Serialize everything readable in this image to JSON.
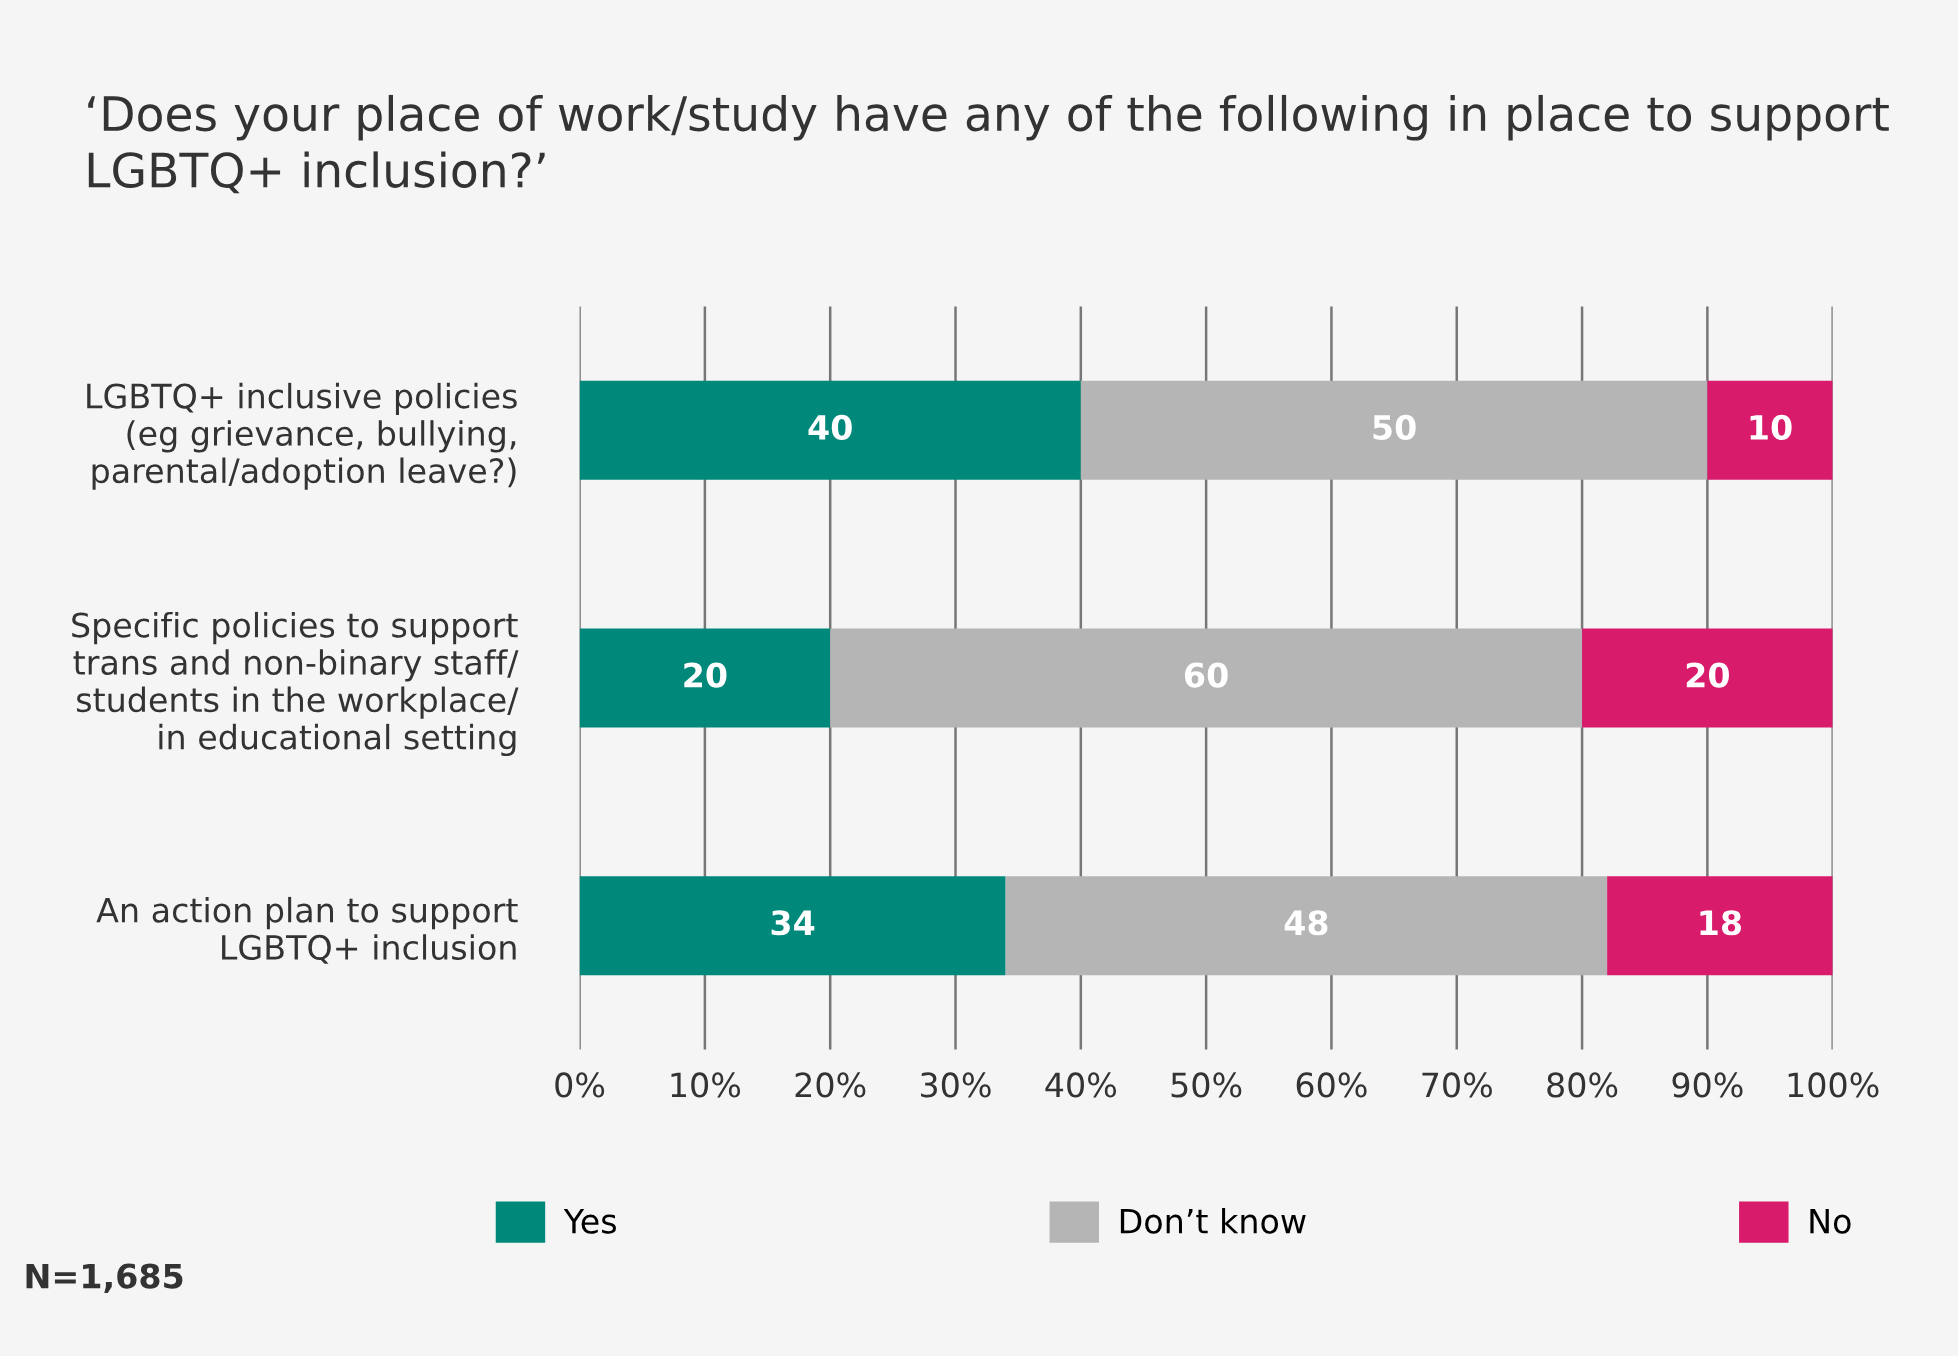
{
  "chart_data": {
    "type": "bar",
    "orientation": "horizontal",
    "stacked": true,
    "title": "‘Does your place of work/study have any of the following in place to support LGBTQ+ inclusion?’",
    "categories": [
      "LGBTQ+ inclusive policies\n(eg grievance, bullying,\nparental/adoption leave?)",
      "Specific policies to support\ntrans and non-binary staff/\nstudents in the workplace/\nin educational setting",
      "An action plan to support\nLGBTQ+ inclusion"
    ],
    "series": [
      {
        "name": "Yes",
        "color": "#00897b",
        "values": [
          40,
          20,
          34
        ]
      },
      {
        "name": "Don’t know",
        "color": "#b5b5b5",
        "values": [
          50,
          60,
          48
        ]
      },
      {
        "name": "No",
        "color": "#d81b6b",
        "values": [
          10,
          20,
          18
        ]
      }
    ],
    "xlim": [
      0,
      100
    ],
    "xticks": [
      {
        "value": 0,
        "label": "0%"
      },
      {
        "value": 10,
        "label": "10%"
      },
      {
        "value": 20,
        "label": "20%"
      },
      {
        "value": 30,
        "label": "30%"
      },
      {
        "value": 40,
        "label": "40%"
      },
      {
        "value": 50,
        "label": "50%"
      },
      {
        "value": 60,
        "label": "60%"
      },
      {
        "value": 70,
        "label": "70%"
      },
      {
        "value": 80,
        "label": "80%"
      },
      {
        "value": 90,
        "label": "90%"
      },
      {
        "value": 100,
        "label": "100%"
      }
    ],
    "grid": "x",
    "legend": "bottom",
    "data_labels": true,
    "annotations": [
      "N=1,685"
    ]
  }
}
